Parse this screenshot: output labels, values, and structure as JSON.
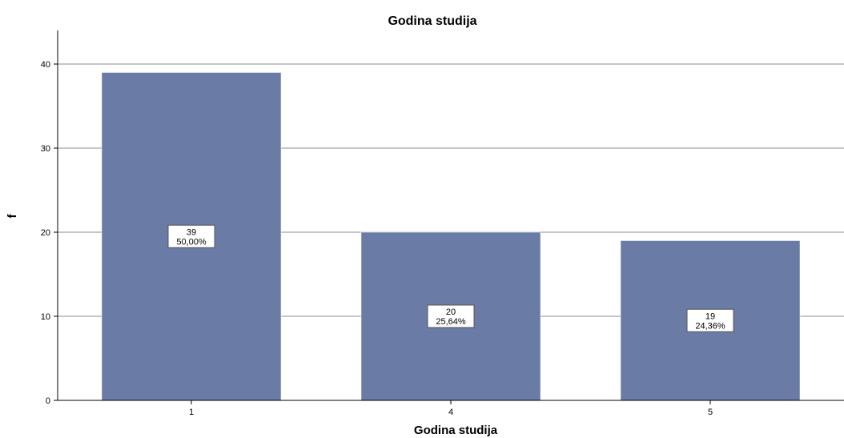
{
  "chart_data": {
    "type": "bar",
    "title": "Godina studija",
    "xlabel": "Godina studija",
    "ylabel": "f",
    "categories": [
      "1",
      "4",
      "5"
    ],
    "values": [
      39,
      20,
      19
    ],
    "data_labels": [
      {
        "count": "39",
        "percent": "50,00%"
      },
      {
        "count": "20",
        "percent": "25,64%"
      },
      {
        "count": "19",
        "percent": "24,36%"
      }
    ],
    "y_ticks": [
      "0",
      "10",
      "20",
      "30",
      "40"
    ],
    "ylim": [
      0,
      44
    ],
    "grid": true,
    "legend": "none",
    "bar_color": "#6a7ba5"
  }
}
